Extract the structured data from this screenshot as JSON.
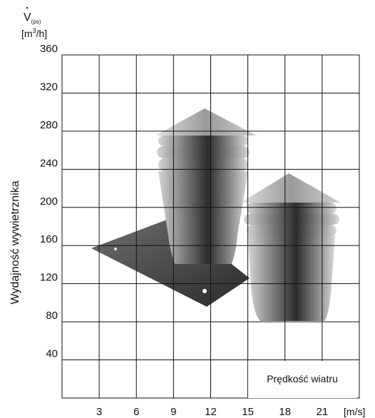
{
  "chart_data": {
    "type": "line",
    "ylabel": "Wydajność wywietrznika",
    "y_symbol_main": "V",
    "y_symbol_sub": "(ps)",
    "y_unit": "[m³/h]",
    "y_unit_base": "[m",
    "y_unit_sup": "3",
    "y_unit_rest": "/h]",
    "x_unit": "[m/s]",
    "annotation": "Prędkość wiatru",
    "x_ticks": [
      3,
      6,
      9,
      12,
      15,
      18,
      21
    ],
    "x_tick_labels": [
      "3",
      "6",
      "9",
      "12",
      "15",
      "18",
      "21"
    ],
    "y_ticks": [
      40,
      80,
      120,
      160,
      200,
      240,
      280,
      320,
      360
    ],
    "y_tick_labels": [
      "40",
      "80",
      "120",
      "160",
      "200",
      "240",
      "280",
      "320",
      "360"
    ],
    "xlim": [
      0,
      24
    ],
    "ylim": [
      0,
      360
    ],
    "grid": true,
    "series": []
  }
}
